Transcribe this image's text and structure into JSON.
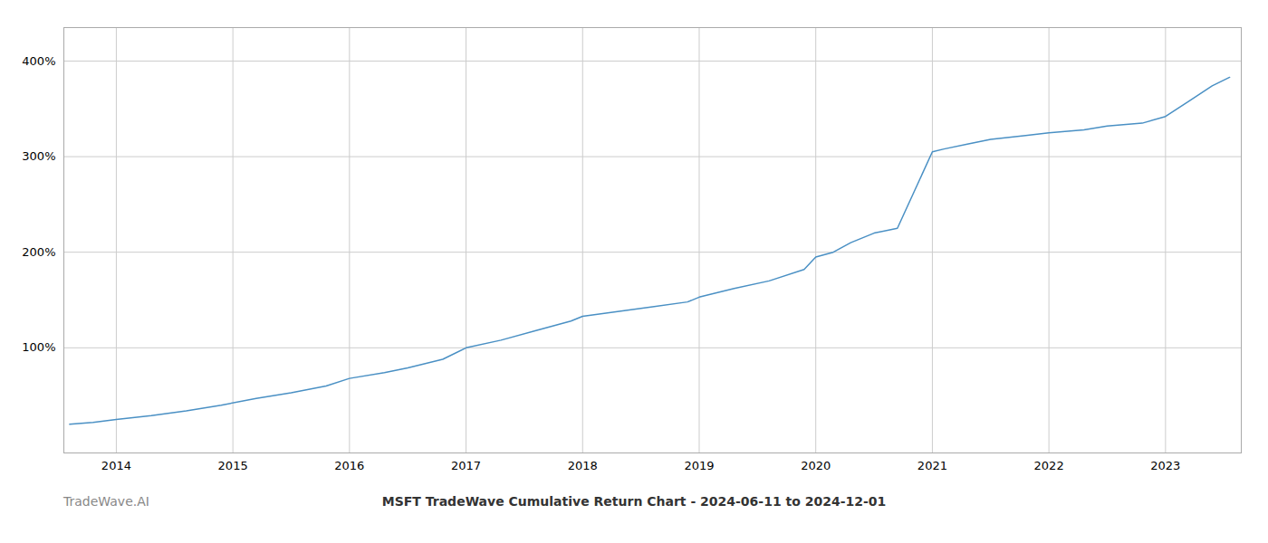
{
  "chart_data": {
    "type": "line",
    "title": "MSFT TradeWave Cumulative Return Chart - 2024-06-11 to 2024-12-01",
    "annotations": [
      "TradeWave.AI"
    ],
    "color": "#4a90c4",
    "grid": true,
    "xlim": [
      2013.55,
      2023.65
    ],
    "xticks": [
      2014,
      2015,
      2016,
      2017,
      2018,
      2019,
      2020,
      2021,
      2022,
      2023
    ],
    "ylim": [
      -10,
      435
    ],
    "yticks": [
      {
        "value": 100,
        "label": "100%"
      },
      {
        "value": 200,
        "label": "200%"
      },
      {
        "value": 300,
        "label": "300%"
      },
      {
        "value": 400,
        "label": "400%"
      }
    ],
    "x": [
      2013.6,
      2013.8,
      2014.0,
      2014.3,
      2014.6,
      2014.9,
      2015.2,
      2015.5,
      2015.8,
      2016.0,
      2016.3,
      2016.5,
      2016.8,
      2017.0,
      2017.3,
      2017.6,
      2017.9,
      2018.0,
      2018.3,
      2018.6,
      2018.9,
      2019.0,
      2019.3,
      2019.6,
      2019.9,
      2020.0,
      2020.15,
      2020.3,
      2020.5,
      2020.7,
      2021.0,
      2021.1,
      2021.3,
      2021.5,
      2021.8,
      2022.0,
      2022.3,
      2022.5,
      2022.8,
      2023.0,
      2023.2,
      2023.4,
      2023.55
    ],
    "values": [
      20,
      22,
      25,
      29,
      34,
      40,
      47,
      53,
      60,
      68,
      74,
      79,
      88,
      100,
      108,
      118,
      128,
      133,
      138,
      143,
      148,
      153,
      162,
      170,
      182,
      195,
      200,
      210,
      220,
      225,
      305,
      308,
      313,
      318,
      322,
      325,
      328,
      332,
      335,
      342,
      358,
      374,
      383
    ]
  }
}
